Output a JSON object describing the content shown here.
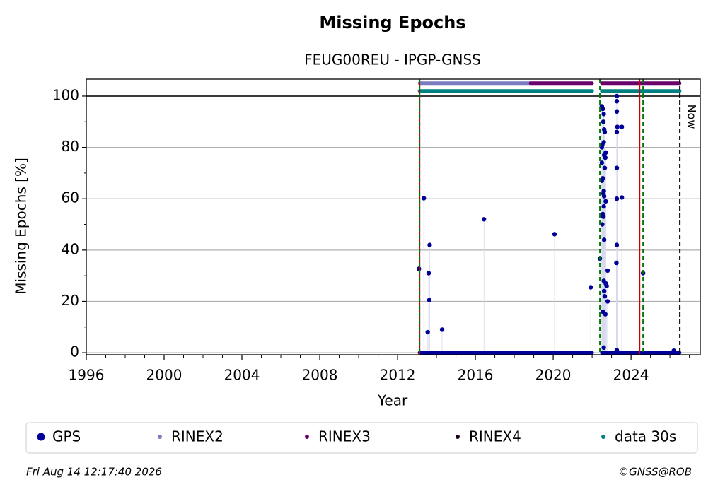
{
  "chart_data": {
    "type": "scatter",
    "title": "Missing Epochs",
    "subtitle": "FEUG00REU - IPGP-GNSS",
    "x_label": "Year",
    "y_label": "Missing Epochs [%]",
    "xlim": [
      1996,
      2027.56
    ],
    "ylim": [
      -0.8,
      106.6
    ],
    "xticks": [
      1996,
      2000,
      2004,
      2008,
      2012,
      2016,
      2020,
      2024
    ],
    "yticks": [
      0,
      20,
      40,
      60,
      80,
      100
    ],
    "grid": true,
    "series": [
      {
        "name": "GPS",
        "color": "#000099",
        "x": [
          2013.1,
          2013.35,
          2013.55,
          2013.6,
          2013.65,
          2013.63,
          2014.29,
          2016.44,
          2020.07,
          2021.93,
          2022.4,
          2022.5,
          2022.55,
          2022.6,
          2022.58,
          2022.62,
          2022.52,
          2022.65,
          2022.5,
          2022.6,
          2022.7,
          2022.62,
          2022.68,
          2022.5,
          2022.65,
          2022.55,
          2022.5,
          2022.6,
          2022.58,
          2022.62,
          2022.7,
          2022.6,
          2022.55,
          2022.58,
          2022.52,
          2022.62,
          2022.8,
          2022.6,
          2022.7,
          2022.75,
          2022.62,
          2022.65,
          2022.8,
          2022.55,
          2022.68,
          2022.6,
          2023.27,
          2023.27,
          2023.27,
          2023.3,
          2023.27,
          2023.27,
          2023.27,
          2023.27,
          2023.25,
          2023.27,
          2023.53,
          2023.53,
          2024.62,
          2026.2
        ],
        "values": [
          32.7,
          60.2,
          8,
          31,
          42,
          20.5,
          9,
          52,
          46.2,
          25.5,
          36.7,
          96,
          95,
          93,
          90,
          87,
          81,
          86,
          80,
          82,
          78,
          77,
          76,
          74,
          72,
          68,
          67,
          63,
          62,
          61,
          59,
          57,
          54,
          53,
          50,
          44,
          32,
          28,
          27,
          26,
          24,
          22,
          20,
          16,
          15,
          2,
          100,
          98,
          94,
          88,
          86,
          72,
          60,
          42,
          35,
          1,
          88,
          60.5,
          31,
          0.8
        ],
        "ranges": [
          [
            2013.13,
            2022.0
          ],
          [
            2022.5,
            2026.5
          ]
        ],
        "y": 0
      },
      {
        "name": "RINEX2",
        "color": "#7b7bbf",
        "ranges": [
          [
            2013.13,
            2018.84
          ]
        ],
        "y": 105
      },
      {
        "name": "RINEX3",
        "color": "#6a006a",
        "ranges": [
          [
            2018.84,
            2022.0
          ],
          [
            2022.5,
            2026.5
          ]
        ],
        "y": 105
      },
      {
        "name": "RINEX4",
        "color": "#220022",
        "ranges": [],
        "y": 105
      },
      {
        "name": "data 30s",
        "color": "#008080",
        "ranges": [
          [
            2013.13,
            2022.0
          ],
          [
            2022.5,
            2026.5
          ]
        ],
        "y": 102
      }
    ],
    "vlines": [
      {
        "x": 2013.13,
        "color": "#cc0000",
        "dashed": false
      },
      {
        "x": 2013.13,
        "color": "#007700",
        "dashed": true
      },
      {
        "x": 2022.4,
        "color": "#007700",
        "dashed": true
      },
      {
        "x": 2024.44,
        "color": "#cc0000",
        "dashed": false
      },
      {
        "x": 2024.62,
        "color": "#007700",
        "dashed": true
      },
      {
        "x": 2026.51,
        "color": "#000000",
        "dashed": true
      }
    ],
    "now_label": "Now",
    "date": "Fri Aug 14 12:17:40 2026",
    "copyright": "©GNSS@ROB"
  }
}
